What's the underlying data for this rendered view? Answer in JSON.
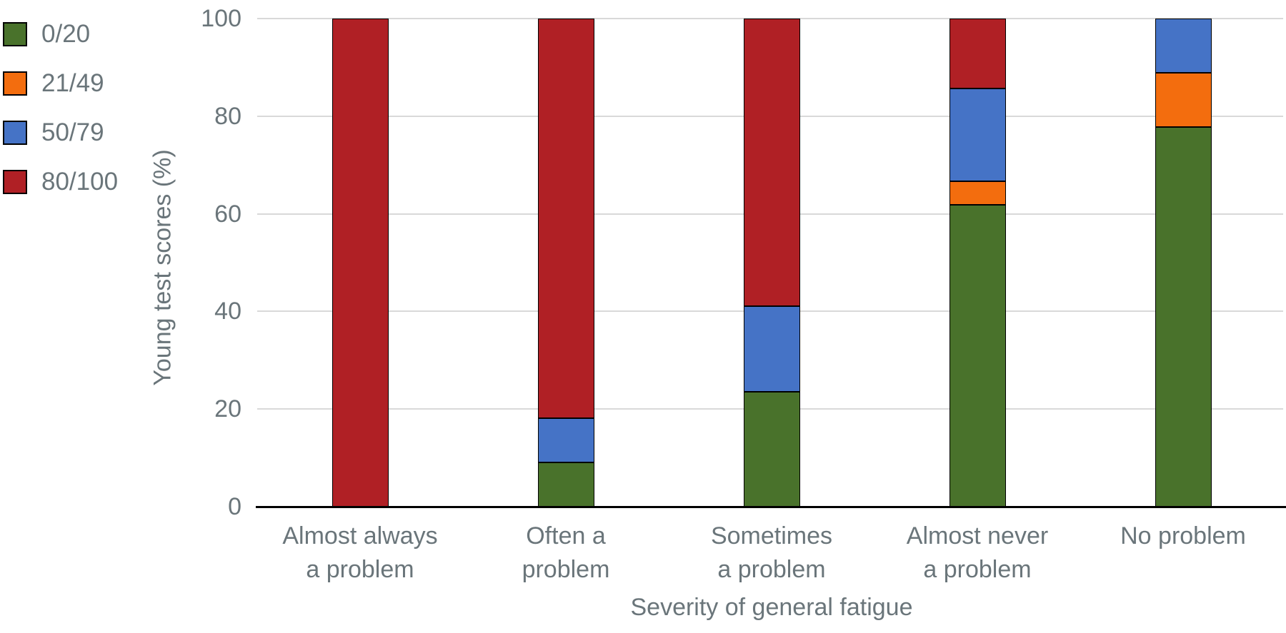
{
  "chart_data": {
    "type": "bar",
    "stacked": true,
    "orientation": "vertical",
    "title": "",
    "xlabel": "Severity of general fatigue",
    "ylabel": "Young test scores (%)",
    "ylim": [
      0,
      100
    ],
    "yticks": [
      0,
      20,
      40,
      60,
      80,
      100
    ],
    "grid": "horizontal",
    "legend_position": "top-left",
    "categories": [
      [
        "Almost always",
        "a problem"
      ],
      [
        "Often a",
        "problem"
      ],
      [
        "Sometimes",
        "a problem"
      ],
      [
        "Almost never",
        "a problem"
      ],
      [
        "No problem"
      ]
    ],
    "series": [
      {
        "name": "0/20",
        "color": "#49722b",
        "values": [
          0,
          9.1,
          23.5,
          61.9,
          77.8
        ]
      },
      {
        "name": "21/49",
        "color": "#f36d0e",
        "values": [
          0,
          0,
          0,
          4.8,
          11.1
        ]
      },
      {
        "name": "50/79",
        "color": "#4573c6",
        "values": [
          0,
          9.1,
          17.6,
          19.0,
          11.1
        ]
      },
      {
        "name": "80/100",
        "color": "#b02025",
        "values": [
          100,
          81.8,
          58.9,
          14.3,
          0
        ]
      }
    ],
    "colors": {
      "grid": "#d9d9d9",
      "axis": "#000000",
      "bar_border": "#000000",
      "text": "#6a757a"
    }
  }
}
